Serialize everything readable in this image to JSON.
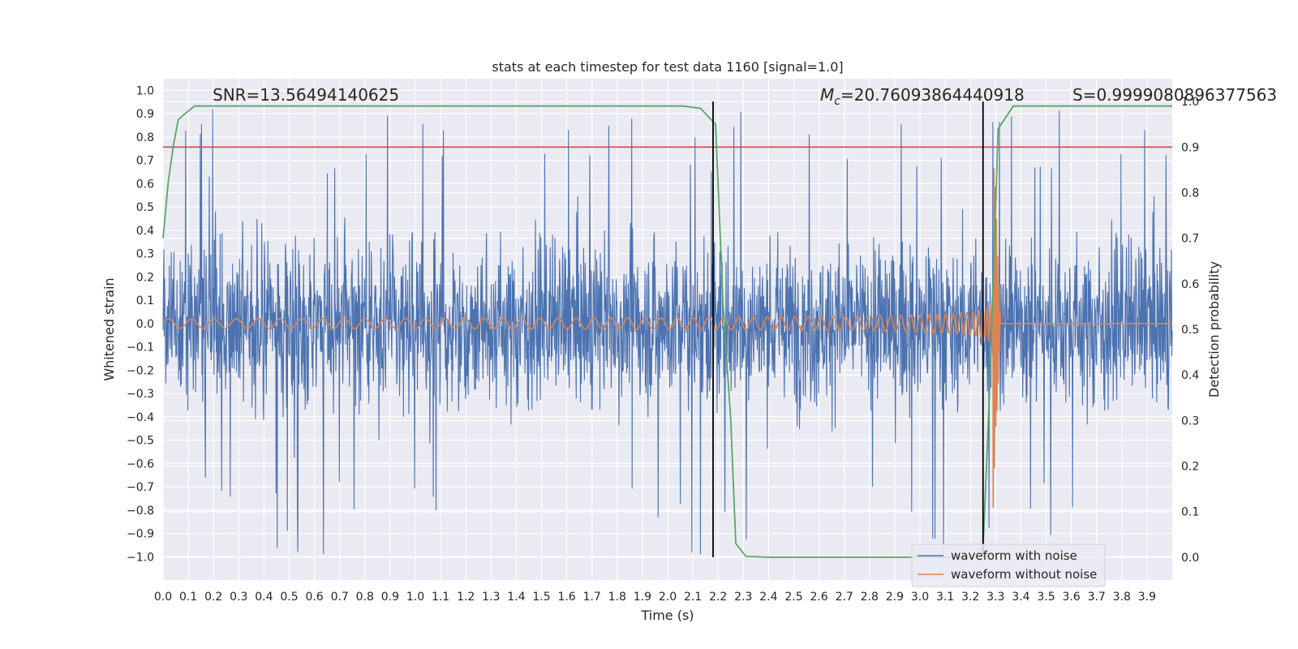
{
  "chart_data": {
    "type": "line",
    "title": "stats at each timestep for test data 1160 [signal=1.0]",
    "xlabel": "Time (s)",
    "ylabel": "Whitened strain",
    "ylabel_right": "Detection probability",
    "xlim": [
      0.0,
      4.0
    ],
    "ylim": [
      -1.1,
      1.05
    ],
    "ylim_right": [
      -0.05,
      1.05
    ],
    "x_ticks": [
      "0.0",
      "0.1",
      "0.2",
      "0.3",
      "0.4",
      "0.5",
      "0.6",
      "0.7",
      "0.8",
      "0.9",
      "1.0",
      "1.1",
      "1.2",
      "1.3",
      "1.4",
      "1.5",
      "1.6",
      "1.7",
      "1.8",
      "1.9",
      "2.0",
      "2.1",
      "2.2",
      "2.3",
      "2.4",
      "2.5",
      "2.6",
      "2.7",
      "2.8",
      "2.9",
      "3.0",
      "3.1",
      "3.2",
      "3.3",
      "3.4",
      "3.5",
      "3.6",
      "3.7",
      "3.8",
      "3.9"
    ],
    "y_ticks": [
      "1.0",
      "0.9",
      "0.8",
      "0.7",
      "0.6",
      "0.5",
      "0.4",
      "0.3",
      "0.2",
      "0.1",
      "0.0",
      "−0.1",
      "−0.2",
      "−0.3",
      "−0.4",
      "−0.5",
      "−0.6",
      "−0.7",
      "−0.8",
      "−0.9",
      "−1.0"
    ],
    "y_ticks_right": [
      "1.0",
      "0.9",
      "0.8",
      "0.7",
      "0.6",
      "0.5",
      "0.4",
      "0.3",
      "0.2",
      "0.1",
      "0.0"
    ],
    "annotations": {
      "snr": "SNR=13.56494140625",
      "mc_symbol": "M",
      "mc_sub": "c",
      "mc_value": "=20.76093864440918",
      "s": "S=0.9999080896377563"
    },
    "threshold": {
      "value": 0.9,
      "axis": "right",
      "color": "#c44e52"
    },
    "vlines": [
      2.18,
      3.25
    ],
    "legend": {
      "placement": "lower-right",
      "entries": [
        "waveform with noise",
        "waveform without noise"
      ]
    },
    "series": [
      {
        "name": "waveform with noise",
        "color": "#4c72b0",
        "kind": "noise",
        "amplitude_range": [
          -1.0,
          0.92
        ]
      },
      {
        "name": "waveform without noise",
        "color": "#dd8452",
        "kind": "chirp",
        "merger_time": 3.29,
        "ringdown_end": 3.32
      },
      {
        "name": "detection probability",
        "color": "#55a868",
        "axis": "right",
        "x": [
          0.0,
          0.02,
          0.04,
          0.06,
          0.08,
          0.125,
          0.5,
          1.0,
          1.5,
          2.0,
          2.06,
          2.13,
          2.19,
          2.22,
          2.25,
          2.27,
          2.31,
          2.4,
          2.6,
          3.0,
          3.2,
          3.25,
          3.275,
          3.31,
          3.37,
          3.5,
          4.0
        ],
        "values": [
          0.7,
          0.82,
          0.9,
          0.96,
          0.97,
          0.99,
          0.99,
          0.99,
          0.99,
          0.99,
          0.99,
          0.985,
          0.95,
          0.55,
          0.3,
          0.03,
          0.002,
          0.0,
          0.0,
          0.0,
          0.0,
          0.02,
          0.35,
          0.94,
          0.99,
          0.99,
          0.99
        ]
      }
    ]
  }
}
